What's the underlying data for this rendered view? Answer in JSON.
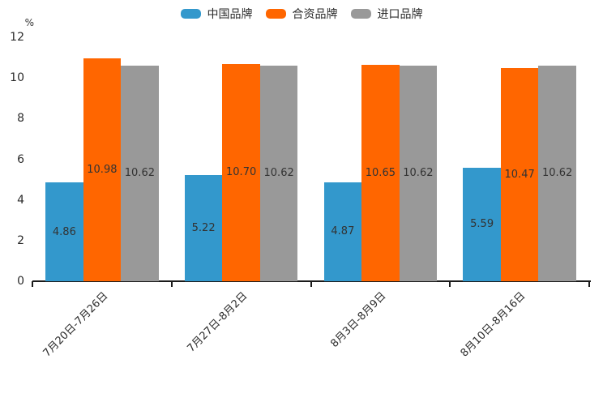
{
  "chart_data": {
    "type": "bar",
    "unit_label": "%",
    "categories": [
      "7月20日-7月26日",
      "7月27日-8月2日",
      "8月3日-8月9日",
      "8月10日-8月16日"
    ],
    "series": [
      {
        "name": "中国品牌",
        "color": "#3398CC",
        "values": [
          4.86,
          5.22,
          4.87,
          5.59
        ],
        "labels": [
          "4.86",
          "5.22",
          "4.87",
          "5.59"
        ]
      },
      {
        "name": "合资品牌",
        "color": "#FF6600",
        "values": [
          10.98,
          10.7,
          10.65,
          10.47
        ],
        "labels": [
          "10.98",
          "10.70",
          "10.65",
          "10.47"
        ]
      },
      {
        "name": "进口品牌",
        "color": "#999999",
        "values": [
          10.62,
          10.62,
          10.62,
          10.62
        ],
        "labels": [
          "10.62",
          "10.62",
          "10.62",
          "10.62"
        ]
      }
    ],
    "y_axis": {
      "min": 0,
      "max": 12,
      "tick_step": 2,
      "ticks": [
        "0",
        "2",
        "4",
        "6",
        "8",
        "10",
        "12"
      ]
    },
    "legend_position": "top",
    "grid": false,
    "value_label_position": "inside-center"
  },
  "style": {
    "axis_color": "#1a1a1a",
    "text_color": "#333333",
    "background": "#ffffff"
  }
}
